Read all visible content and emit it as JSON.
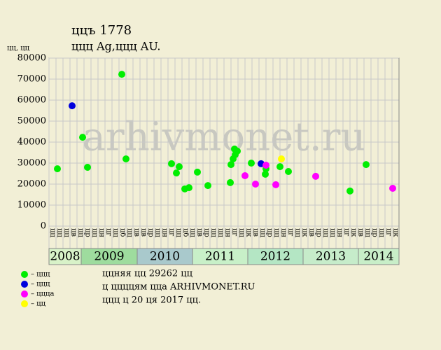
{
  "chart_data": {
    "type": "scatter",
    "title": "ццъ 1778",
    "subtitle": "ццц Ag,ццц AU.",
    "y_label": "цц, цц",
    "watermark": "arhivmonet.ru",
    "xlim": [
      0,
      50
    ],
    "ylim": [
      0,
      80000
    ],
    "yticks": [
      0,
      10000,
      20000,
      30000,
      40000,
      50000,
      60000,
      70000,
      80000
    ],
    "grid": true,
    "column_labels": [
      "цц",
      "цц",
      "цц",
      "цв",
      "цц",
      "цр",
      "цц",
      "цн",
      "цг",
      "цц",
      "цб",
      "цц",
      "цв",
      "цв",
      "цр",
      "цц",
      "цн",
      "цг",
      "цц",
      "цб",
      "цц",
      "цв",
      "цр",
      "цц",
      "цц",
      "цн",
      "цг",
      "цц",
      "цк",
      "цв",
      "цц",
      "цр",
      "цц",
      "цн",
      "цг",
      "цц",
      "цк",
      "цв",
      "цр",
      "цц",
      "цц",
      "цн",
      "цг",
      "цк",
      "цв",
      "цц",
      "цр",
      "цц",
      "цг",
      "цк"
    ],
    "year_bands": [
      {
        "label": "2008",
        "start": 0,
        "end": 4.6,
        "color": "#d8f2c8"
      },
      {
        "label": "2009",
        "start": 4.6,
        "end": 12.6,
        "color": "#9edc9e"
      },
      {
        "label": "2010",
        "start": 12.6,
        "end": 20.5,
        "color": "#a9c9cc"
      },
      {
        "label": "2011",
        "start": 20.5,
        "end": 28.4,
        "color": "#c8f0c8"
      },
      {
        "label": "2012",
        "start": 28.4,
        "end": 36.3,
        "color": "#b4e6c4"
      },
      {
        "label": "2013",
        "start": 36.3,
        "end": 44.2,
        "color": "#c6ecca"
      },
      {
        "label": "2014",
        "start": 44.2,
        "end": 50,
        "color": "#c8eec8"
      }
    ],
    "series": [
      {
        "name": "– ццц",
        "color": "#00ee00",
        "x": [
          1.2,
          4.8,
          5.5,
          10.4,
          11.0,
          17.5,
          18.2,
          18.6,
          19.4,
          20.0,
          21.2,
          22.7,
          25.9,
          26.0,
          26.3,
          26.6,
          26.5,
          26.9,
          28.9,
          30.9,
          31.0,
          33.0,
          34.2,
          43.0,
          45.3
        ],
        "values": [
          27300,
          42300,
          28000,
          72300,
          32000,
          29700,
          25300,
          28300,
          17700,
          18300,
          25700,
          19300,
          20700,
          29300,
          32000,
          34000,
          36700,
          35700,
          30000,
          24700,
          27300,
          28300,
          26000,
          16700,
          29300
        ]
      },
      {
        "name": "– ццц",
        "color": "#0000dd",
        "x": [
          3.3,
          30.3
        ],
        "values": [
          57300,
          29700
        ]
      },
      {
        "name": "– ццца",
        "color": "#ff00ff",
        "x": [
          28.0,
          29.5,
          31.0,
          32.4,
          38.1,
          49.1
        ],
        "values": [
          24000,
          20000,
          29000,
          19700,
          23700,
          18000
        ]
      },
      {
        "name": "– цц",
        "color": "#ffff00",
        "x": [
          33.2
        ],
        "values": [
          32000
        ]
      }
    ],
    "notes": [
      "ццняя цц 29262 цц",
      "ц ццццям цца ARHIVMONET.RU",
      "ццц ц 20 ця 2017 цц."
    ]
  }
}
